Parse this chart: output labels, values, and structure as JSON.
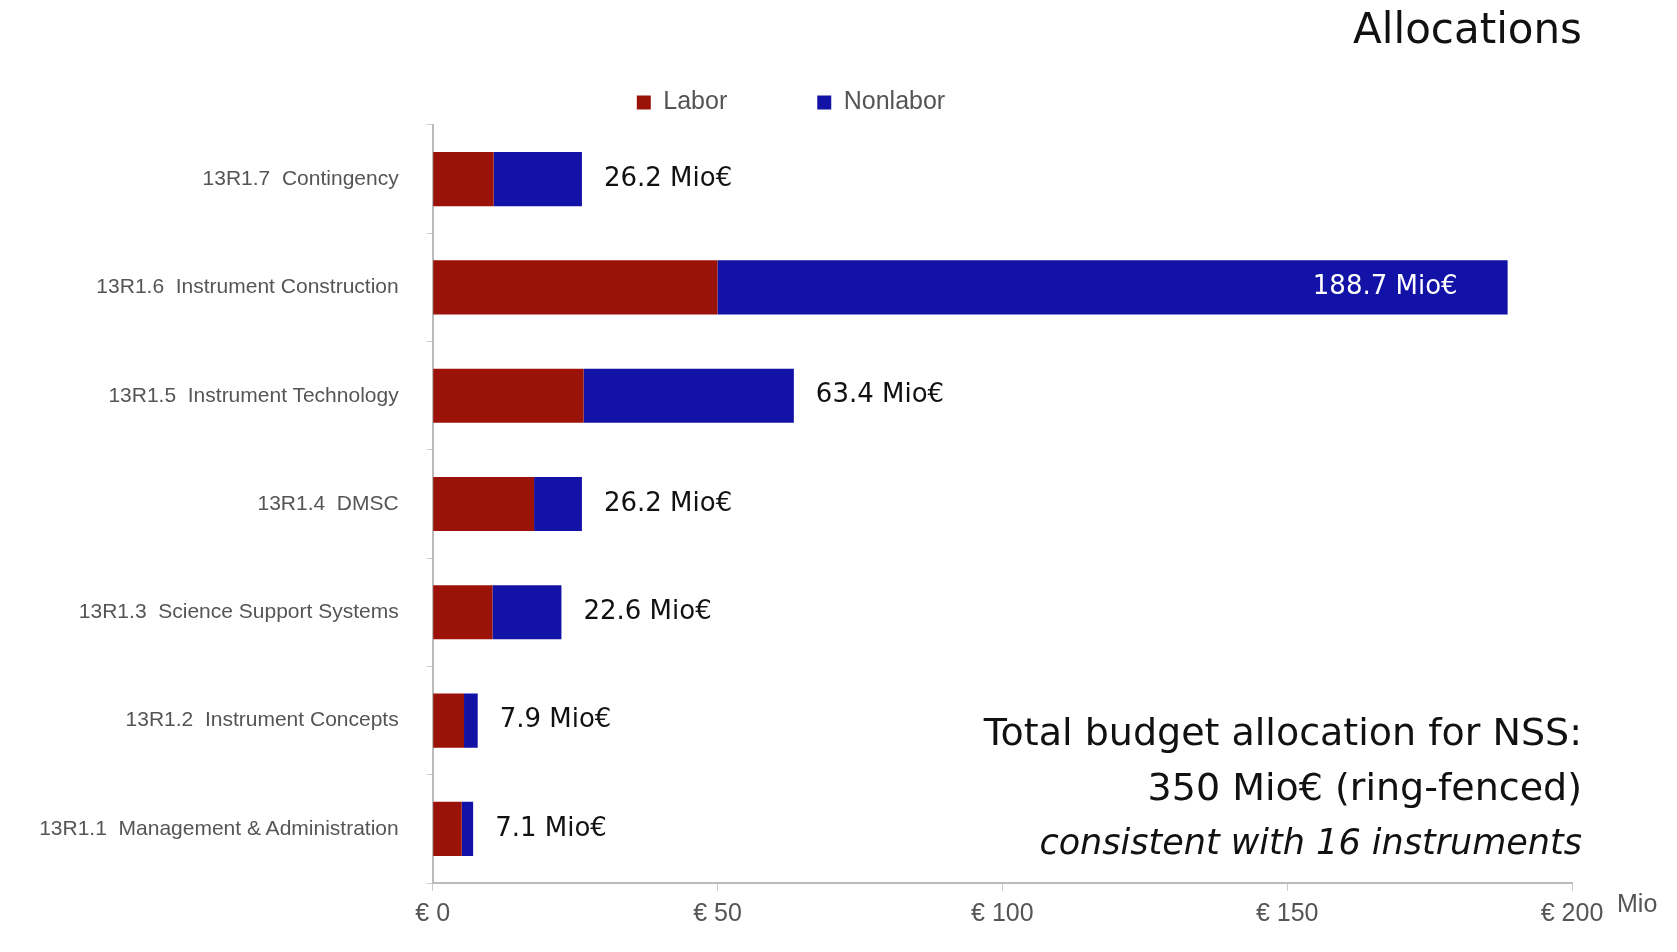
{
  "chart_data": {
    "type": "bar",
    "orientation": "horizontal",
    "stacked": true,
    "title": "Allocations",
    "xlabel": "Mio",
    "categories": [
      "13R1.7  Contingency",
      "13R1.6  Instrument Construction",
      "13R1.5  Instrument Technology",
      "13R1.4  DMSC",
      "13R1.3  Science Support Systems",
      "13R1.2  Instrument Concepts",
      "13R1.1  Management & Administration"
    ],
    "series": [
      {
        "name": "Labor",
        "color": "#9b1208",
        "values": [
          10.7,
          50.0,
          26.5,
          17.8,
          10.5,
          5.5,
          5.1
        ]
      },
      {
        "name": "Nonlabor",
        "color": "#1212a6",
        "values": [
          15.5,
          138.7,
          36.9,
          8.4,
          12.1,
          2.4,
          2.0
        ]
      }
    ],
    "totals": [
      "26.2 Mio€",
      "188.7 Mio€",
      "63.4 Mio€",
      "26.2 Mio€",
      "22.6 Mio€",
      "7.9 Mio€",
      "7.1 Mio€"
    ],
    "xlim": [
      0,
      200
    ],
    "xticks": [
      {
        "value": 0,
        "label": "€ 0"
      },
      {
        "value": 50,
        "label": "€ 50"
      },
      {
        "value": 100,
        "label": "€ 100"
      },
      {
        "value": 150,
        "label": "€ 150"
      },
      {
        "value": 200,
        "label": "€ 200"
      }
    ],
    "grid": false,
    "legend": "top",
    "annotations": [
      "Total budget allocation for NSS:",
      "350 Mio€ (ring-fenced)",
      "consistent with 16 instruments"
    ]
  }
}
